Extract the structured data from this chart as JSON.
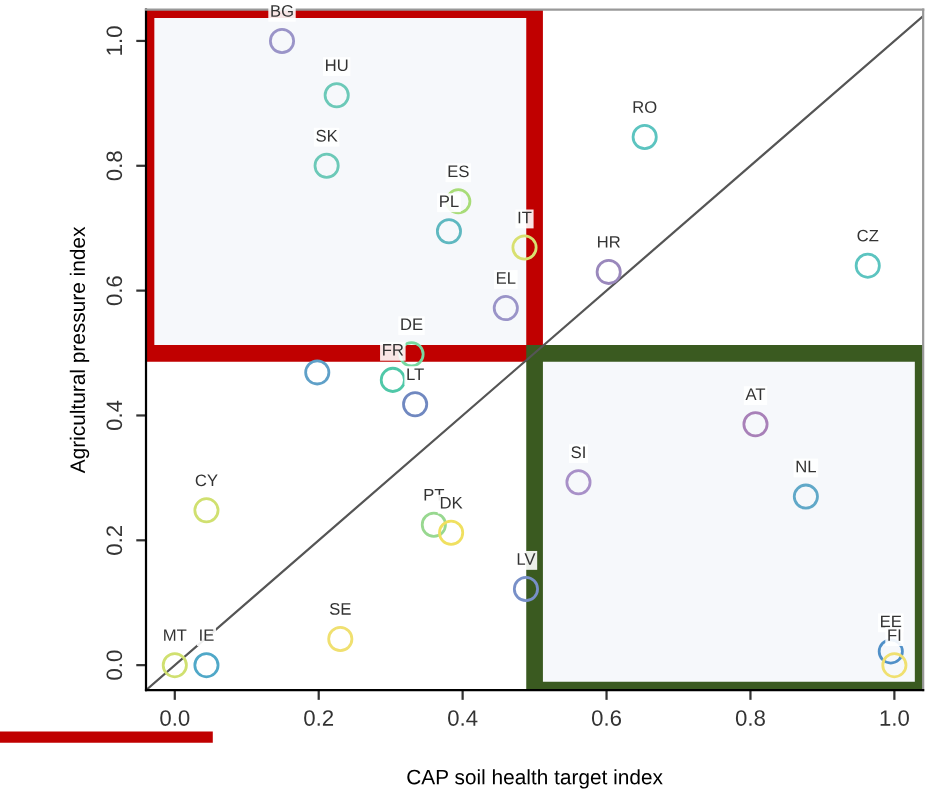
{
  "chart_data": {
    "type": "scatter",
    "xlabel": "CAP soil health target index",
    "ylabel": "Agricultural pressure index",
    "xlim": [
      -0.04,
      1.04
    ],
    "ylim": [
      -0.04,
      1.05
    ],
    "xticks": [
      {
        "value": 0,
        "label": "0.0"
      },
      0.2,
      0.4,
      0.6,
      0.8,
      {
        "value": 1,
        "label": "1.0"
      }
    ],
    "yticks": [
      {
        "value": 0,
        "label": "0.0"
      },
      0.2,
      0.4,
      0.6,
      0.8,
      {
        "value": 1,
        "label": "1.0"
      }
    ],
    "marker": "circle",
    "grid": false,
    "series": [
      {
        "x": [
          0.149,
          0.225,
          0.211,
          0.394,
          0.381,
          0.486,
          0.46,
          0.653,
          0.603,
          0.963,
          0.198,
          0.329,
          0.303,
          0.334,
          0.044,
          0.36,
          0.384,
          0.488,
          0.23,
          0.0,
          0.044,
          0.561,
          0.807,
          0.877,
          0.995,
          1.0
        ],
        "values": [
          1.0,
          0.913,
          0.8,
          0.743,
          0.695,
          0.669,
          0.572,
          0.846,
          0.63,
          0.64,
          0.469,
          0.498,
          0.457,
          0.418,
          0.248,
          0.225,
          0.212,
          0.122,
          0.042,
          0.0,
          0.0,
          0.293,
          0.386,
          0.27,
          0.022,
          0.0
        ],
        "colors": [
          "#9a94c8",
          "#6cc9b8",
          "#6cc9b8",
          "#a8dc78",
          "#5fb8c0",
          "#d8e070",
          "#9a94c8",
          "#5cc4c0",
          "#9a88bc",
          "#5cc4c0",
          "#5fa0c8",
          "#78d8a0",
          "#50c8a8",
          "#7088c0",
          "#d0e070",
          "#98d890",
          "#f0e060",
          "#7890c8",
          "#f0e070",
          "#d0e070",
          "#50a8c8",
          "#a890c8",
          "#a880b8",
          "#60a8c8",
          "#5090c8",
          "#f0e070"
        ]
      },
      {
        "type": "line",
        "x": [
          -0.04,
          1.04
        ],
        "values": [
          -0.04,
          1.04
        ],
        "color": "#555555",
        "marker": "none"
      }
    ],
    "annotations": [
      {
        "text": "BG",
        "x": 0.149,
        "y": 1.0
      },
      {
        "text": "HU",
        "x": 0.225,
        "y": 0.913
      },
      {
        "text": "SK",
        "x": 0.211,
        "y": 0.8
      },
      {
        "text": "ES",
        "x": 0.394,
        "y": 0.743
      },
      {
        "text": "PL",
        "x": 0.381,
        "y": 0.695
      },
      {
        "text": "IT",
        "x": 0.486,
        "y": 0.669
      },
      {
        "text": "EL",
        "x": 0.46,
        "y": 0.572
      },
      {
        "text": "RO",
        "x": 0.653,
        "y": 0.846
      },
      {
        "text": "HR",
        "x": 0.603,
        "y": 0.63
      },
      {
        "text": "CZ",
        "x": 0.963,
        "y": 0.64
      },
      {
        "text": "DE",
        "x": 0.329,
        "y": 0.498
      },
      {
        "text": "FR",
        "x": 0.303,
        "y": 0.457
      },
      {
        "text": "LT",
        "x": 0.334,
        "y": 0.418
      },
      {
        "text": "CY",
        "x": 0.044,
        "y": 0.248
      },
      {
        "text": "PT",
        "x": 0.36,
        "y": 0.225
      },
      {
        "text": "DK",
        "x": 0.384,
        "y": 0.212
      },
      {
        "text": "LV",
        "x": 0.488,
        "y": 0.122
      },
      {
        "text": "SE",
        "x": 0.23,
        "y": 0.042
      },
      {
        "text": "MT",
        "x": 0.0,
        "y": 0.0
      },
      {
        "text": "IE",
        "x": 0.044,
        "y": 0.0
      },
      {
        "text": "SI",
        "x": 0.561,
        "y": 0.293
      },
      {
        "text": "AT",
        "x": 0.807,
        "y": 0.386
      },
      {
        "text": "NL",
        "x": 0.877,
        "y": 0.27
      },
      {
        "text": "EE",
        "x": 0.995,
        "y": 0.022
      },
      {
        "text": "FI",
        "x": 1.0,
        "y": 0.0
      }
    ]
  }
}
